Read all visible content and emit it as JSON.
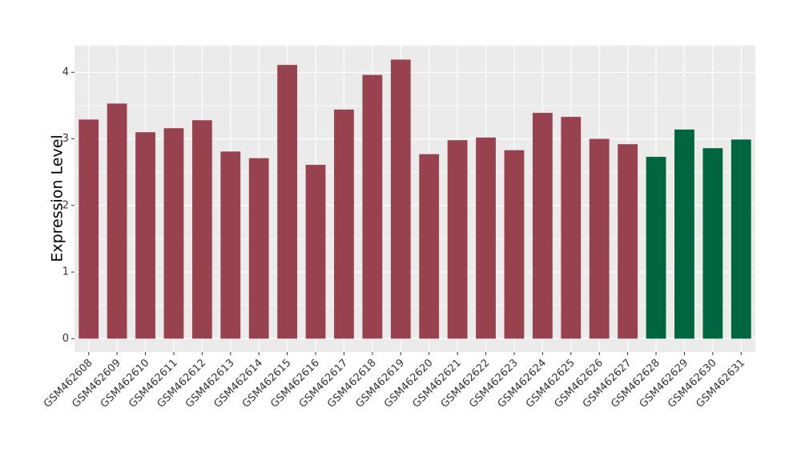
{
  "chart_data": {
    "type": "bar",
    "y_label": "Expression Level",
    "categories": [
      "GSM462608",
      "GSM462609",
      "GSM462610",
      "GSM462611",
      "GSM462612",
      "GSM462613",
      "GSM462614",
      "GSM462615",
      "GSM462616",
      "GSM462617",
      "GSM462618",
      "GSM462619",
      "GSM462620",
      "GSM462621",
      "GSM462622",
      "GSM462623",
      "GSM462624",
      "GSM462625",
      "GSM462626",
      "GSM462627",
      "GSM462628",
      "GSM462629",
      "GSM462630",
      "GSM462631"
    ],
    "values": [
      3.29,
      3.53,
      3.1,
      3.16,
      3.28,
      2.81,
      2.71,
      4.11,
      2.61,
      3.44,
      3.96,
      4.19,
      2.77,
      2.98,
      3.02,
      2.83,
      3.39,
      3.33,
      3.0,
      2.92,
      2.73,
      3.14,
      2.86,
      2.99
    ],
    "colors": [
      "#984250",
      "#984250",
      "#984250",
      "#984250",
      "#984250",
      "#984250",
      "#984250",
      "#984250",
      "#984250",
      "#984250",
      "#984250",
      "#984250",
      "#984250",
      "#984250",
      "#984250",
      "#984250",
      "#984250",
      "#984250",
      "#984250",
      "#984250",
      "#006641",
      "#006641",
      "#006641",
      "#006641"
    ],
    "ylim": [
      -0.2,
      4.4
    ],
    "yticks": [
      0,
      1,
      2,
      3,
      4
    ],
    "grid": true
  }
}
